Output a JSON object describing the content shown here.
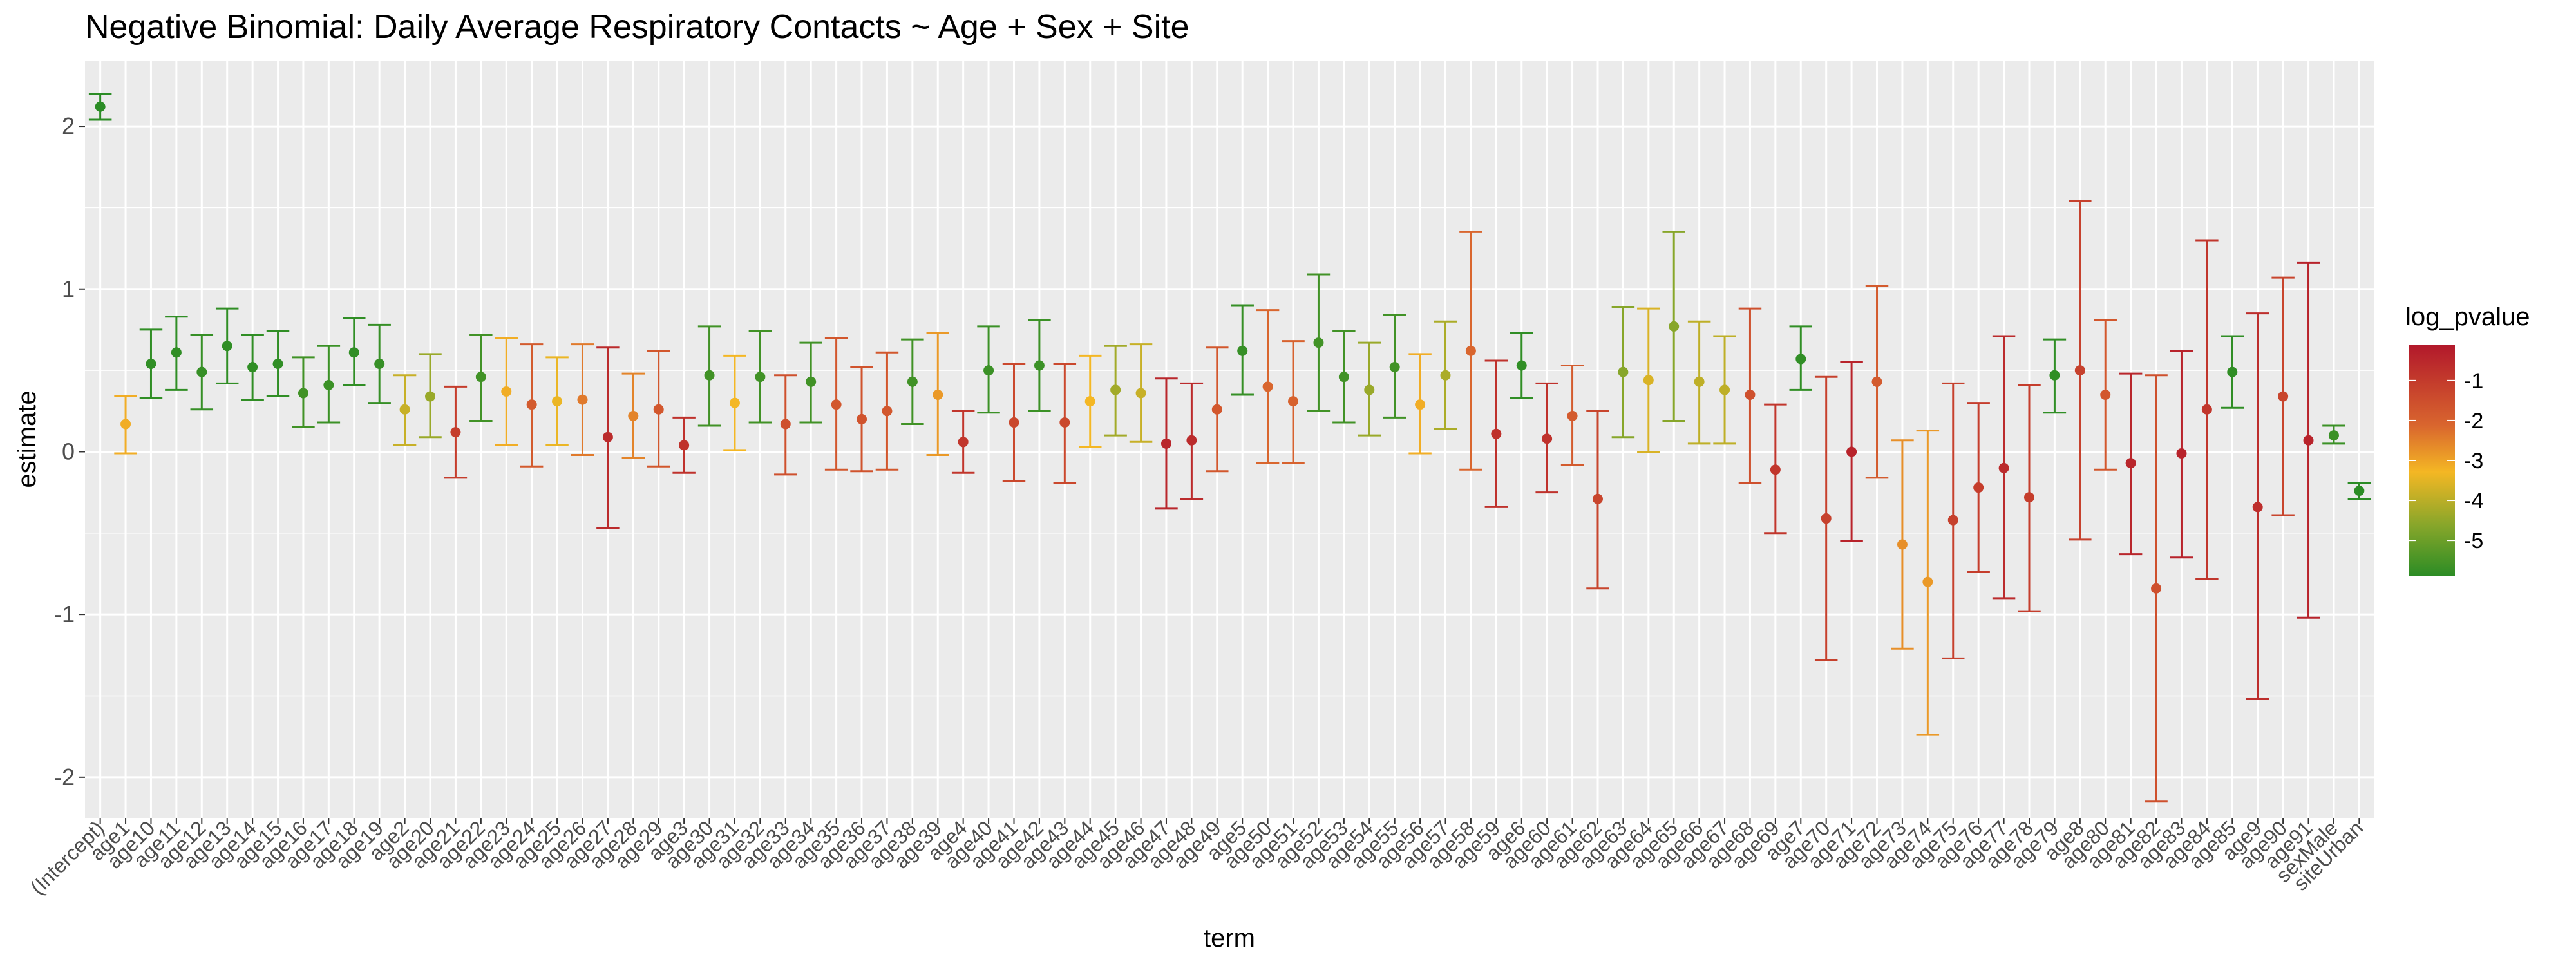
{
  "chart_data": {
    "type": "scatter",
    "title": "Negative Binomial: Daily Average Respiratory Contacts ~ Age + Sex + Site",
    "xlabel": "term",
    "ylabel": "estimate",
    "ylim": [
      -2.25,
      2.4
    ],
    "y_ticks": [
      -2,
      -1,
      0,
      1,
      2
    ],
    "grid": true,
    "error_bars": true,
    "legend": {
      "title": "log_pvalue",
      "position": "right",
      "ticks": [
        -1,
        -2,
        -3,
        -4,
        -5
      ],
      "range": [
        -5.9,
        -0.1
      ],
      "colors": {
        "high": "#b2182b",
        "mid1": "#d9662e",
        "mid2": "#f4b724",
        "mid3": "#87a62a",
        "low": "#2b8c25"
      }
    },
    "points": [
      {
        "term": "(Intercept)",
        "estimate": 2.12,
        "low": 2.04,
        "high": 2.2,
        "log_pvalue": -5.9
      },
      {
        "term": "age1",
        "estimate": 0.17,
        "low": -0.01,
        "high": 0.34,
        "log_pvalue": -2.9
      },
      {
        "term": "age10",
        "estimate": 0.54,
        "low": 0.33,
        "high": 0.75,
        "log_pvalue": -5.8
      },
      {
        "term": "age11",
        "estimate": 0.61,
        "low": 0.38,
        "high": 0.83,
        "log_pvalue": -5.8
      },
      {
        "term": "age12",
        "estimate": 0.49,
        "low": 0.26,
        "high": 0.72,
        "log_pvalue": -5.7
      },
      {
        "term": "age13",
        "estimate": 0.65,
        "low": 0.42,
        "high": 0.88,
        "log_pvalue": -5.8
      },
      {
        "term": "age14",
        "estimate": 0.52,
        "low": 0.32,
        "high": 0.72,
        "log_pvalue": -5.8
      },
      {
        "term": "age15",
        "estimate": 0.54,
        "low": 0.34,
        "high": 0.74,
        "log_pvalue": -5.8
      },
      {
        "term": "age16",
        "estimate": 0.36,
        "low": 0.15,
        "high": 0.58,
        "log_pvalue": -5.5
      },
      {
        "term": "age17",
        "estimate": 0.41,
        "low": 0.18,
        "high": 0.65,
        "log_pvalue": -5.6
      },
      {
        "term": "age18",
        "estimate": 0.61,
        "low": 0.41,
        "high": 0.82,
        "log_pvalue": -5.8
      },
      {
        "term": "age19",
        "estimate": 0.54,
        "low": 0.3,
        "high": 0.78,
        "log_pvalue": -5.7
      },
      {
        "term": "age2",
        "estimate": 0.26,
        "low": 0.04,
        "high": 0.47,
        "log_pvalue": -3.5
      },
      {
        "term": "age20",
        "estimate": 0.34,
        "low": 0.09,
        "high": 0.6,
        "log_pvalue": -4.0
      },
      {
        "term": "age21",
        "estimate": 0.12,
        "low": -0.16,
        "high": 0.4,
        "log_pvalue": -1.1
      },
      {
        "term": "age22",
        "estimate": 0.46,
        "low": 0.19,
        "high": 0.72,
        "log_pvalue": -5.5
      },
      {
        "term": "age23",
        "estimate": 0.37,
        "low": 0.04,
        "high": 0.7,
        "log_pvalue": -2.9
      },
      {
        "term": "age24",
        "estimate": 0.29,
        "low": -0.09,
        "high": 0.66,
        "log_pvalue": -1.9
      },
      {
        "term": "age25",
        "estimate": 0.31,
        "low": 0.04,
        "high": 0.58,
        "log_pvalue": -3.1
      },
      {
        "term": "age26",
        "estimate": 0.32,
        "low": -0.02,
        "high": 0.66,
        "log_pvalue": -2.4
      },
      {
        "term": "age27",
        "estimate": 0.09,
        "low": -0.47,
        "high": 0.64,
        "log_pvalue": -0.6
      },
      {
        "term": "age28",
        "estimate": 0.22,
        "low": -0.04,
        "high": 0.48,
        "log_pvalue": -2.5
      },
      {
        "term": "age29",
        "estimate": 0.26,
        "low": -0.09,
        "high": 0.62,
        "log_pvalue": -1.8
      },
      {
        "term": "age3",
        "estimate": 0.04,
        "low": -0.13,
        "high": 0.21,
        "log_pvalue": -0.8
      },
      {
        "term": "age30",
        "estimate": 0.47,
        "low": 0.16,
        "high": 0.77,
        "log_pvalue": -5.5
      },
      {
        "term": "age31",
        "estimate": 0.3,
        "low": 0.01,
        "high": 0.59,
        "log_pvalue": -3.0
      },
      {
        "term": "age32",
        "estimate": 0.46,
        "low": 0.18,
        "high": 0.74,
        "log_pvalue": -5.5
      },
      {
        "term": "age33",
        "estimate": 0.17,
        "low": -0.14,
        "high": 0.47,
        "log_pvalue": -1.6
      },
      {
        "term": "age34",
        "estimate": 0.43,
        "low": 0.18,
        "high": 0.67,
        "log_pvalue": -5.5
      },
      {
        "term": "age35",
        "estimate": 0.29,
        "low": -0.11,
        "high": 0.7,
        "log_pvalue": -1.8
      },
      {
        "term": "age36",
        "estimate": 0.2,
        "low": -0.12,
        "high": 0.52,
        "log_pvalue": -1.7
      },
      {
        "term": "age37",
        "estimate": 0.25,
        "low": -0.11,
        "high": 0.61,
        "log_pvalue": -1.8
      },
      {
        "term": "age38",
        "estimate": 0.43,
        "low": 0.17,
        "high": 0.69,
        "log_pvalue": -5.5
      },
      {
        "term": "age39",
        "estimate": 0.35,
        "low": -0.02,
        "high": 0.73,
        "log_pvalue": -2.7
      },
      {
        "term": "age4",
        "estimate": 0.06,
        "low": -0.13,
        "high": 0.25,
        "log_pvalue": -0.9
      },
      {
        "term": "age40",
        "estimate": 0.5,
        "low": 0.24,
        "high": 0.77,
        "log_pvalue": -5.6
      },
      {
        "term": "age41",
        "estimate": 0.18,
        "low": -0.18,
        "high": 0.54,
        "log_pvalue": -1.4
      },
      {
        "term": "age42",
        "estimate": 0.53,
        "low": 0.25,
        "high": 0.81,
        "log_pvalue": -5.6
      },
      {
        "term": "age43",
        "estimate": 0.18,
        "low": -0.19,
        "high": 0.54,
        "log_pvalue": -1.4
      },
      {
        "term": "age44",
        "estimate": 0.31,
        "low": 0.03,
        "high": 0.59,
        "log_pvalue": -3.0
      },
      {
        "term": "age45",
        "estimate": 0.38,
        "low": 0.1,
        "high": 0.65,
        "log_pvalue": -3.9
      },
      {
        "term": "age46",
        "estimate": 0.36,
        "low": 0.06,
        "high": 0.66,
        "log_pvalue": -3.5
      },
      {
        "term": "age47",
        "estimate": 0.05,
        "low": -0.35,
        "high": 0.45,
        "log_pvalue": -0.5
      },
      {
        "term": "age48",
        "estimate": 0.07,
        "low": -0.29,
        "high": 0.42,
        "log_pvalue": -0.6
      },
      {
        "term": "age49",
        "estimate": 0.26,
        "low": -0.12,
        "high": 0.64,
        "log_pvalue": -1.8
      },
      {
        "term": "age5",
        "estimate": 0.62,
        "low": 0.35,
        "high": 0.9,
        "log_pvalue": -5.7
      },
      {
        "term": "age50",
        "estimate": 0.4,
        "low": -0.07,
        "high": 0.87,
        "log_pvalue": -2.2
      },
      {
        "term": "age51",
        "estimate": 0.31,
        "low": -0.07,
        "high": 0.68,
        "log_pvalue": -2.1
      },
      {
        "term": "age52",
        "estimate": 0.67,
        "low": 0.25,
        "high": 1.09,
        "log_pvalue": -5.5
      },
      {
        "term": "age53",
        "estimate": 0.46,
        "low": 0.18,
        "high": 0.74,
        "log_pvalue": -5.5
      },
      {
        "term": "age54",
        "estimate": 0.38,
        "low": 0.1,
        "high": 0.67,
        "log_pvalue": -4.0
      },
      {
        "term": "age55",
        "estimate": 0.52,
        "low": 0.21,
        "high": 0.84,
        "log_pvalue": -5.5
      },
      {
        "term": "age56",
        "estimate": 0.29,
        "low": -0.01,
        "high": 0.6,
        "log_pvalue": -2.9
      },
      {
        "term": "age57",
        "estimate": 0.47,
        "low": 0.14,
        "high": 0.8,
        "log_pvalue": -3.8
      },
      {
        "term": "age58",
        "estimate": 0.62,
        "low": -0.11,
        "high": 1.35,
        "log_pvalue": -2.2
      },
      {
        "term": "age59",
        "estimate": 0.11,
        "low": -0.34,
        "high": 0.56,
        "log_pvalue": -0.8
      },
      {
        "term": "age6",
        "estimate": 0.53,
        "low": 0.33,
        "high": 0.73,
        "log_pvalue": -5.8
      },
      {
        "term": "age60",
        "estimate": 0.08,
        "low": -0.25,
        "high": 0.42,
        "log_pvalue": -0.8
      },
      {
        "term": "age61",
        "estimate": 0.22,
        "low": -0.08,
        "high": 0.53,
        "log_pvalue": -1.9
      },
      {
        "term": "age62",
        "estimate": -0.29,
        "low": -0.84,
        "high": 0.25,
        "log_pvalue": -1.3
      },
      {
        "term": "age63",
        "estimate": 0.49,
        "low": 0.09,
        "high": 0.89,
        "log_pvalue": -4.2
      },
      {
        "term": "age64",
        "estimate": 0.44,
        "low": 0.0,
        "high": 0.88,
        "log_pvalue": -3.3
      },
      {
        "term": "age65",
        "estimate": 0.77,
        "low": 0.19,
        "high": 1.35,
        "log_pvalue": -4.2
      },
      {
        "term": "age66",
        "estimate": 0.43,
        "low": 0.05,
        "high": 0.8,
        "log_pvalue": -3.6
      },
      {
        "term": "age67",
        "estimate": 0.38,
        "low": 0.05,
        "high": 0.71,
        "log_pvalue": -3.6
      },
      {
        "term": "age68",
        "estimate": 0.35,
        "low": -0.19,
        "high": 0.88,
        "log_pvalue": -1.6
      },
      {
        "term": "age69",
        "estimate": -0.11,
        "low": -0.5,
        "high": 0.29,
        "log_pvalue": -0.9
      },
      {
        "term": "age7",
        "estimate": 0.57,
        "low": 0.38,
        "high": 0.77,
        "log_pvalue": -5.8
      },
      {
        "term": "age70",
        "estimate": -0.41,
        "low": -1.28,
        "high": 0.46,
        "log_pvalue": -1.2
      },
      {
        "term": "age71",
        "estimate": 0.0,
        "low": -0.55,
        "high": 0.55,
        "log_pvalue": -0.4
      },
      {
        "term": "age72",
        "estimate": 0.43,
        "low": -0.16,
        "high": 1.02,
        "log_pvalue": -1.9
      },
      {
        "term": "age73",
        "estimate": -0.57,
        "low": -1.21,
        "high": 0.07,
        "log_pvalue": -2.6
      },
      {
        "term": "age74",
        "estimate": -0.8,
        "low": -1.74,
        "high": 0.13,
        "log_pvalue": -2.7
      },
      {
        "term": "age75",
        "estimate": -0.42,
        "low": -1.27,
        "high": 0.42,
        "log_pvalue": -1.2
      },
      {
        "term": "age76",
        "estimate": -0.22,
        "low": -0.74,
        "high": 0.3,
        "log_pvalue": -1.1
      },
      {
        "term": "age77",
        "estimate": -0.1,
        "low": -0.9,
        "high": 0.71,
        "log_pvalue": -0.6
      },
      {
        "term": "age78",
        "estimate": -0.28,
        "low": -0.98,
        "high": 0.41,
        "log_pvalue": -1.1
      },
      {
        "term": "age79",
        "estimate": 0.47,
        "low": 0.24,
        "high": 0.69,
        "log_pvalue": -5.8
      },
      {
        "term": "age8",
        "estimate": 0.5,
        "low": -0.54,
        "high": 1.54,
        "log_pvalue": -1.2
      },
      {
        "term": "age80",
        "estimate": 0.35,
        "low": -0.11,
        "high": 0.81,
        "log_pvalue": -1.8
      },
      {
        "term": "age81",
        "estimate": -0.07,
        "low": -0.63,
        "high": 0.48,
        "log_pvalue": -0.5
      },
      {
        "term": "age82",
        "estimate": -0.84,
        "low": -2.15,
        "high": 0.47,
        "log_pvalue": -1.6
      },
      {
        "term": "age83",
        "estimate": -0.01,
        "low": -0.65,
        "high": 0.62,
        "log_pvalue": -0.4
      },
      {
        "term": "age84",
        "estimate": 0.26,
        "low": -0.78,
        "high": 1.3,
        "log_pvalue": -0.9
      },
      {
        "term": "age85",
        "estimate": 0.49,
        "low": 0.27,
        "high": 0.71,
        "log_pvalue": -5.8
      },
      {
        "term": "age9",
        "estimate": -0.34,
        "low": -1.52,
        "high": 0.85,
        "log_pvalue": -0.7
      },
      {
        "term": "age90",
        "estimate": 0.34,
        "low": -0.39,
        "high": 1.07,
        "log_pvalue": -1.3
      },
      {
        "term": "age91",
        "estimate": 0.07,
        "low": -1.02,
        "high": 1.16,
        "log_pvalue": -0.4
      },
      {
        "term": "sexMale",
        "estimate": 0.1,
        "low": 0.05,
        "high": 0.16,
        "log_pvalue": -5.6
      },
      {
        "term": "siteUrban",
        "estimate": -0.24,
        "low": -0.29,
        "high": -0.19,
        "log_pvalue": -5.9
      }
    ]
  }
}
